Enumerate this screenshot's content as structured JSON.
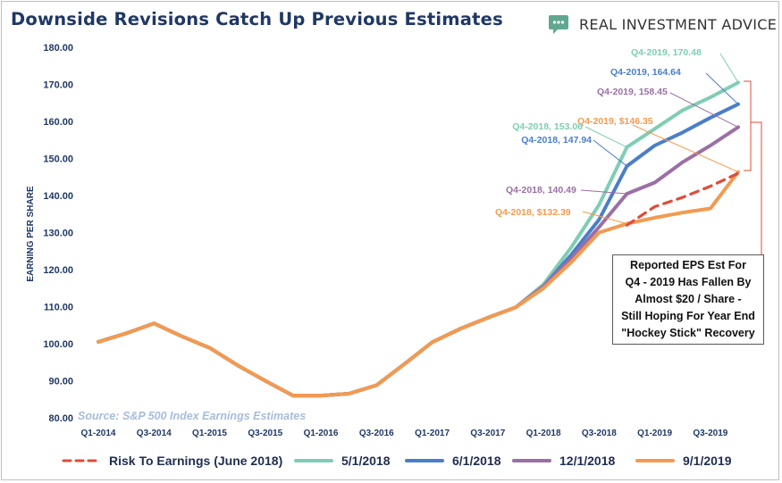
{
  "header": {
    "title": "Downside Revisions Catch Up Previous Estimates",
    "brand_name": "REAL INVESTMENT ADVICE"
  },
  "colors": {
    "title": "#1f3864",
    "risk": "#e04b3a",
    "s_2018_05": "#7fcdb4",
    "s_2018_06": "#4a7ec8",
    "s_2018_12": "#9b6fa5",
    "s_2019_09": "#f39a4f",
    "axis_text": "#1f3864",
    "logo_bg": "#5fa88f"
  },
  "chart_data": {
    "type": "line",
    "title": "Downside Revisions Catch Up Previous Estimates",
    "ylabel": "EARNING PER SHARE",
    "xlabel": "",
    "ylim": [
      80,
      180
    ],
    "yticks": [
      "80.00",
      "90.00",
      "100.00",
      "110.00",
      "120.00",
      "130.00",
      "140.00",
      "150.00",
      "160.00",
      "170.00",
      "180.00"
    ],
    "x": [
      "Q1-2014",
      "Q2-2014",
      "Q3-2014",
      "Q4-2014",
      "Q1-2015",
      "Q2-2015",
      "Q3-2015",
      "Q4-2015",
      "Q1-2016",
      "Q2-2016",
      "Q3-2016",
      "Q4-2016",
      "Q1-2017",
      "Q2-2017",
      "Q3-2017",
      "Q4-2017",
      "Q1-2018",
      "Q2-2018",
      "Q3-2018",
      "Q4-2018",
      "Q1-2019",
      "Q2-2019",
      "Q3-2019",
      "Q4-2019"
    ],
    "xtick_labels": [
      "Q1-2014",
      "Q3-2014",
      "Q1-2015",
      "Q3-2015",
      "Q1-2016",
      "Q3-2016",
      "Q1-2017",
      "Q3-2017",
      "Q1-2018",
      "Q3-2018",
      "Q1-2019",
      "Q3-2019"
    ],
    "series": [
      {
        "name": "5/1/2018",
        "color_key": "s_2018_05",
        "dashed": false,
        "values": [
          100.5,
          102.8,
          105.5,
          102.0,
          98.9,
          94.2,
          90.0,
          86.0,
          86.0,
          86.5,
          88.8,
          94.5,
          100.4,
          104.0,
          107.0,
          109.8,
          116.0,
          126.0,
          137.5,
          153.06,
          158.0,
          163.0,
          166.5,
          170.48
        ]
      },
      {
        "name": "6/1/2018",
        "color_key": "s_2018_06",
        "dashed": false,
        "values": [
          100.5,
          102.8,
          105.5,
          102.0,
          98.9,
          94.2,
          90.0,
          86.0,
          86.0,
          86.5,
          88.8,
          94.5,
          100.4,
          104.0,
          107.0,
          109.8,
          115.5,
          124.0,
          133.5,
          147.94,
          153.5,
          157.0,
          161.0,
          164.64
        ]
      },
      {
        "name": "12/1/2018",
        "color_key": "s_2018_12",
        "dashed": false,
        "values": [
          100.5,
          102.8,
          105.5,
          102.0,
          98.9,
          94.2,
          90.0,
          86.0,
          86.0,
          86.5,
          88.8,
          94.5,
          100.4,
          104.0,
          107.0,
          109.8,
          115.5,
          123.0,
          131.5,
          140.49,
          143.5,
          149.0,
          153.5,
          158.45
        ]
      },
      {
        "name": "9/1/2019",
        "color_key": "s_2019_09",
        "dashed": false,
        "values": [
          100.5,
          102.8,
          105.5,
          102.0,
          98.9,
          94.2,
          90.0,
          86.0,
          86.0,
          86.5,
          88.8,
          94.5,
          100.4,
          104.0,
          107.0,
          109.8,
          115.0,
          122.0,
          130.0,
          132.39,
          134.0,
          135.4,
          136.5,
          146.35
        ]
      },
      {
        "name": "Risk To Earnings (June 2018)",
        "color_key": "risk",
        "dashed": true,
        "values": [
          null,
          null,
          null,
          null,
          null,
          null,
          null,
          null,
          null,
          null,
          null,
          null,
          null,
          null,
          null,
          null,
          null,
          null,
          null,
          132.0,
          137.0,
          139.5,
          142.5,
          146.0
        ]
      }
    ],
    "annotations": [
      {
        "text": "Q4-2019,  170.48",
        "color_key": "s_2018_05"
      },
      {
        "text": "Q4-2019,  164.64",
        "color_key": "s_2018_06"
      },
      {
        "text": "Q4-2019,  158.45",
        "color_key": "s_2018_12"
      },
      {
        "text": "Q4-2019, $146.35",
        "color_key": "s_2019_09"
      },
      {
        "text": "Q4-2018,  153.06",
        "color_key": "s_2018_05"
      },
      {
        "text": "Q4-2018,  147.94",
        "color_key": "s_2018_06"
      },
      {
        "text": "Q4-2018,  140.49",
        "color_key": "s_2018_12"
      },
      {
        "text": "Q4-2018, $132.39",
        "color_key": "s_2019_09"
      }
    ],
    "note": "Reported EPS Est For\nQ4 - 2019 Has Fallen By\nAlmost $20 / Share -\nStill Hoping For Year End\n\"Hockey Stick\" Recovery",
    "source": "Source: S&P 500 Index Earnings Estimates",
    "grid": false,
    "legend_position": "bottom"
  },
  "legend": [
    {
      "label": "Risk To Earnings (June 2018)",
      "color_key": "risk",
      "dashed": true
    },
    {
      "label": "5/1/2018",
      "color_key": "s_2018_05",
      "dashed": false
    },
    {
      "label": "6/1/2018",
      "color_key": "s_2018_06",
      "dashed": false
    },
    {
      "label": "12/1/2018",
      "color_key": "s_2018_12",
      "dashed": false
    },
    {
      "label": "9/1/2019",
      "color_key": "s_2019_09",
      "dashed": false
    }
  ]
}
